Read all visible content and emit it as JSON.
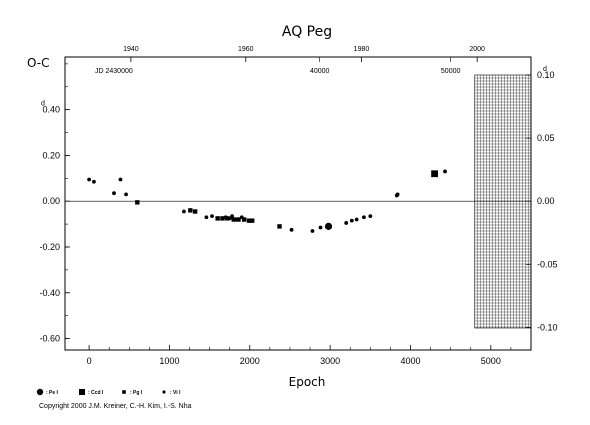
{
  "chart_data": {
    "type": "scatter",
    "title": "AQ Peg",
    "xlabel": "Epoch",
    "ylabel": "O-C",
    "xlim": [
      -300,
      5500
    ],
    "ylim": [
      -0.65,
      0.63
    ],
    "right_ylim": [
      -0.1,
      0.1
    ],
    "x_ticks": [
      "0",
      "1000",
      "2000",
      "3000",
      "4000",
      "5000"
    ],
    "y_ticks": [
      "-0.60",
      "-0.40",
      "-0.20",
      "0.00",
      "0.20",
      "d\n0.40"
    ],
    "right_ticks": [
      "-0.10",
      "-0.05",
      "0.00",
      "0.05",
      "d\n0.10"
    ],
    "top_year_ticks": [
      "1940",
      "1960",
      "1980",
      "2000"
    ],
    "jd_labels": [
      "JD 2430000",
      "40000",
      "50000"
    ],
    "grid": false,
    "zero_line": true,
    "hatched_region": {
      "x_from": 4800,
      "x_to": 5500,
      "y_from": -0.1,
      "y_to": 0.1
    },
    "legend_position": "bottom-left",
    "series": [
      {
        "name": ": Pe I",
        "marker": "circle",
        "size": "large",
        "points": [
          [
            2980,
            -0.11
          ]
        ]
      },
      {
        "name": ": Ccd I",
        "marker": "square",
        "size": "large",
        "points": [
          [
            4300,
            0.12
          ]
        ]
      },
      {
        "name": ": Pg I",
        "marker": "square",
        "size": "small",
        "points": [
          [
            600,
            -0.005
          ],
          [
            1260,
            -0.04
          ],
          [
            1320,
            -0.045
          ],
          [
            1600,
            -0.075
          ],
          [
            1660,
            -0.075
          ],
          [
            1720,
            -0.075
          ],
          [
            1800,
            -0.08
          ],
          [
            1860,
            -0.08
          ],
          [
            1930,
            -0.08
          ],
          [
            1990,
            -0.085
          ],
          [
            2030,
            -0.085
          ],
          [
            2370,
            -0.11
          ]
        ]
      },
      {
        "name": ": Vi I",
        "marker": "circle",
        "size": "small",
        "points": [
          [
            0,
            0.095
          ],
          [
            60,
            0.085
          ],
          [
            310,
            0.035
          ],
          [
            390,
            0.095
          ],
          [
            460,
            0.03
          ],
          [
            1180,
            -0.045
          ],
          [
            1460,
            -0.07
          ],
          [
            1530,
            -0.065
          ],
          [
            1700,
            -0.07
          ],
          [
            1750,
            -0.075
          ],
          [
            1780,
            -0.065
          ],
          [
            1830,
            -0.08
          ],
          [
            1900,
            -0.07
          ],
          [
            2520,
            -0.125
          ],
          [
            2780,
            -0.13
          ],
          [
            2880,
            -0.115
          ],
          [
            3200,
            -0.095
          ],
          [
            3270,
            -0.085
          ],
          [
            3330,
            -0.08
          ],
          [
            3420,
            -0.07
          ],
          [
            3500,
            -0.065
          ],
          [
            3830,
            0.025
          ],
          [
            3840,
            0.03
          ],
          [
            4430,
            0.13
          ]
        ]
      }
    ]
  },
  "copyright": "Copyright 2000 J.M. Kreiner, C.-H. Kim, I.-S. Nha"
}
